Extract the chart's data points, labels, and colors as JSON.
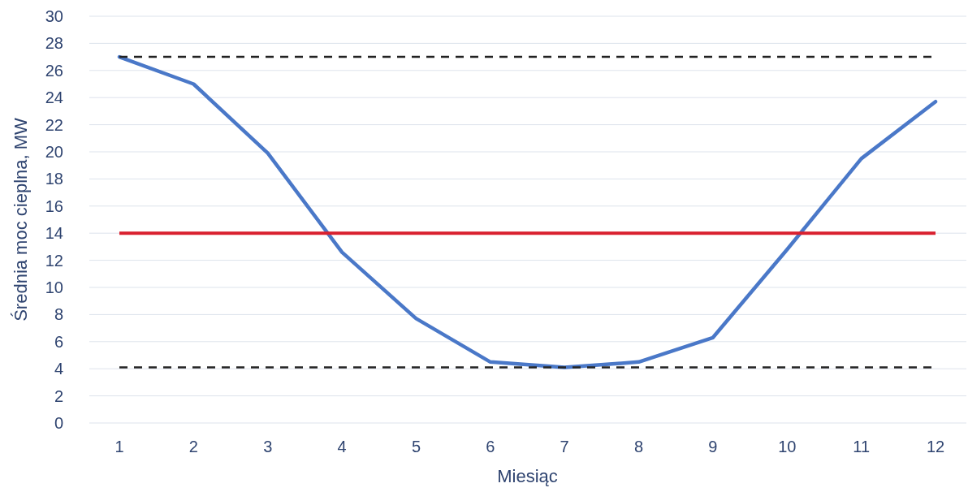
{
  "chart_data": {
    "type": "line",
    "xlabel": "Miesiąc",
    "ylabel": "Średnia moc cieplna, MW",
    "categories": [
      "1",
      "2",
      "3",
      "4",
      "5",
      "6",
      "7",
      "8",
      "9",
      "10",
      "11",
      "12"
    ],
    "series": [
      {
        "color": "#4a78c8",
        "values": [
          27,
          25,
          19.9,
          12.6,
          7.7,
          4.5,
          4.1,
          4.5,
          6.3,
          12.8,
          19.5,
          23.7
        ]
      }
    ],
    "ylim": [
      0,
      30
    ],
    "yticks": [
      0,
      2,
      4,
      6,
      8,
      10,
      12,
      14,
      16,
      18,
      20,
      22,
      24,
      26,
      28,
      30
    ],
    "grid": "y",
    "ref_lines": [
      {
        "axis": "y",
        "value": 27,
        "color": "#222222",
        "line_style": "dashed"
      },
      {
        "axis": "y",
        "value": 14,
        "color": "#d9202e",
        "line_style": "solid"
      },
      {
        "axis": "y",
        "value": 4.1,
        "color": "#222222",
        "line_style": "dashed"
      }
    ]
  }
}
